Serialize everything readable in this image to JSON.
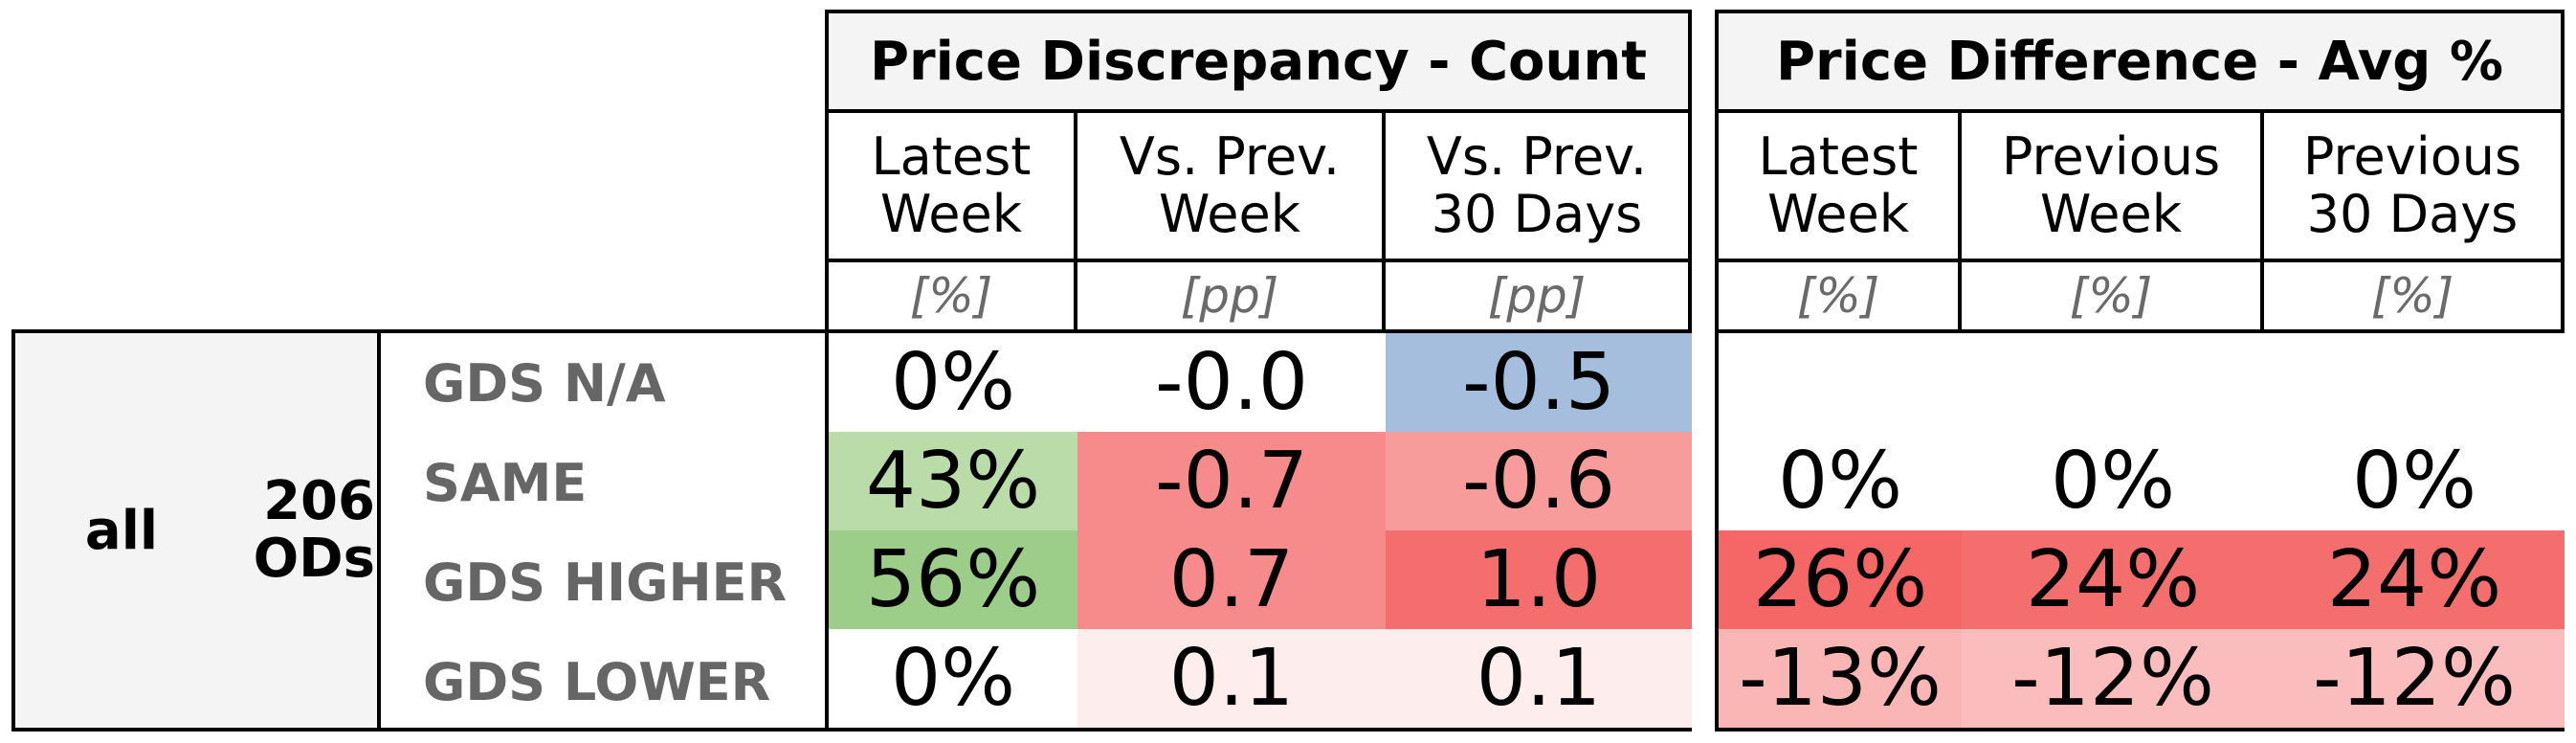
{
  "groups": {
    "count": {
      "title": "Price Discrepancy - Count",
      "columns": [
        {
          "header": "Latest\nWeek",
          "unit": "[%]"
        },
        {
          "header": "Vs. Prev.\nWeek",
          "unit": "[pp]"
        },
        {
          "header": "Vs. Prev.\n30 Days",
          "unit": "[pp]"
        }
      ]
    },
    "avg": {
      "title": "Price Difference - Avg %",
      "columns": [
        {
          "header": "Latest\nWeek",
          "unit": "[%]"
        },
        {
          "header": "Previous\nWeek",
          "unit": "[%]"
        },
        {
          "header": "Previous\n30 Days",
          "unit": "[%]"
        }
      ]
    }
  },
  "segment": {
    "name": "all",
    "ods": "206\nODs"
  },
  "rows": [
    {
      "label": "GDS N/A",
      "count": [
        "0%",
        "-0.0",
        "-0.5"
      ],
      "avg": [
        "",
        "",
        ""
      ]
    },
    {
      "label": "SAME",
      "count": [
        "43%",
        "-0.7",
        "-0.6"
      ],
      "avg": [
        "0%",
        "0%",
        "0%"
      ]
    },
    {
      "label": "GDS HIGHER",
      "count": [
        "56%",
        "0.7",
        "1.0"
      ],
      "avg": [
        "26%",
        "24%",
        "24%"
      ]
    },
    {
      "label": "GDS LOWER",
      "count": [
        "0%",
        "0.1",
        "0.1"
      ],
      "avg": [
        "-13%",
        "-12%",
        "-12%"
      ]
    }
  ],
  "cell_colors": {
    "count": [
      [
        "#ffffff",
        "#ffffff",
        "#a6bede"
      ],
      [
        "#b9dca9",
        "#f78a8a",
        "#f89b9b"
      ],
      [
        "#9cce8a",
        "#f78a8a",
        "#f56e6e"
      ],
      [
        "#ffffff",
        "#feeded",
        "#feeded"
      ]
    ],
    "avg": [
      [
        "#ffffff",
        "#ffffff",
        "#ffffff"
      ],
      [
        "#ffffff",
        "#ffffff",
        "#ffffff"
      ],
      [
        "#f56666",
        "#f56e6e",
        "#f56e6e"
      ],
      [
        "#fab5b5",
        "#fabcbc",
        "#fabcbc"
      ]
    ]
  }
}
